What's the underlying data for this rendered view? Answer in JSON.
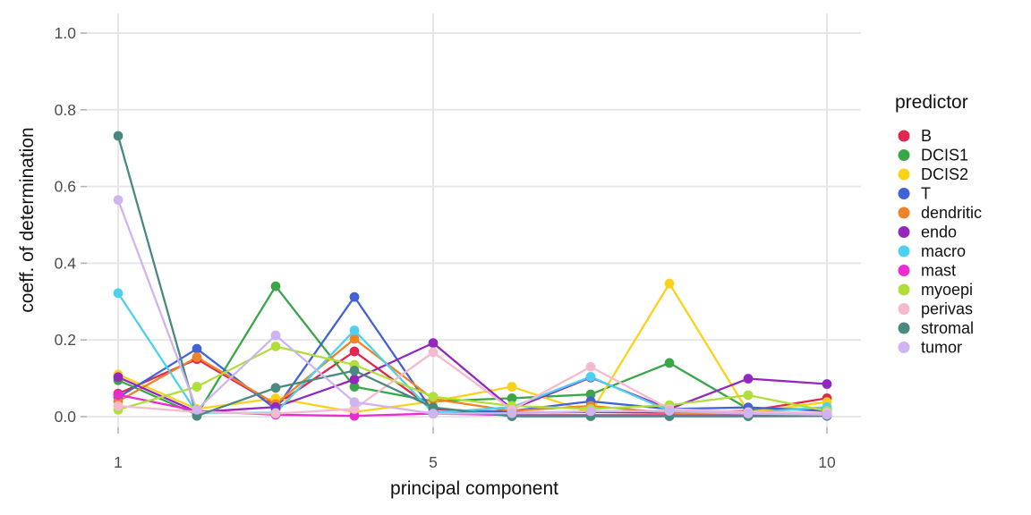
{
  "chart_data": {
    "type": "line",
    "title": "",
    "xlabel": "principal component",
    "ylabel": "coeff. of determination",
    "legend_title": "predictor",
    "legend_position": "right",
    "grid": "major",
    "x": [
      1,
      2,
      3,
      4,
      5,
      6,
      7,
      8,
      9,
      10
    ],
    "x_ticks": [
      {
        "value": 1,
        "label": "1"
      },
      {
        "value": 5,
        "label": "5"
      },
      {
        "value": 10,
        "label": "10"
      }
    ],
    "y_ticks": [
      {
        "value": 0.0,
        "label": "0.0"
      },
      {
        "value": 0.2,
        "label": "0.2"
      },
      {
        "value": 0.4,
        "label": "0.4"
      },
      {
        "value": 0.6,
        "label": "0.6"
      },
      {
        "value": 0.8,
        "label": "0.8"
      },
      {
        "value": 1.0,
        "label": "1.0"
      }
    ],
    "xlim": [
      0.6,
      10.4
    ],
    "ylim": [
      -0.03,
      1.05
    ],
    "series": [
      {
        "name": "B",
        "color": "#E0274F",
        "values": [
          0.06,
          0.15,
          0.03,
          0.17,
          0.02,
          0.01,
          0.012,
          0.01,
          0.015,
          0.048
        ]
      },
      {
        "name": "DCIS1",
        "color": "#3AA648",
        "values": [
          0.095,
          0.005,
          0.34,
          0.078,
          0.04,
          0.048,
          0.058,
          0.14,
          0.02,
          0.02
        ]
      },
      {
        "name": "DCIS2",
        "color": "#FBD21B",
        "values": [
          0.11,
          0.02,
          0.048,
          0.012,
          0.04,
          0.078,
          0.01,
          0.347,
          0.012,
          0.038
        ]
      },
      {
        "name": "T",
        "color": "#4263D8",
        "values": [
          0.05,
          0.177,
          0.02,
          0.312,
          0.012,
          0.015,
          0.04,
          0.02,
          0.024,
          0.015
        ]
      },
      {
        "name": "dendritic",
        "color": "#EF8326",
        "values": [
          0.04,
          0.155,
          0.033,
          0.203,
          0.046,
          0.015,
          0.028,
          0.01,
          0.01,
          0.01
        ]
      },
      {
        "name": "endo",
        "color": "#9327C0",
        "values": [
          0.103,
          0.012,
          0.025,
          0.097,
          0.192,
          0.02,
          0.102,
          0.02,
          0.099,
          0.085
        ]
      },
      {
        "name": "macro",
        "color": "#4ED1F0",
        "values": [
          0.322,
          0.01,
          0.01,
          0.225,
          0.01,
          0.025,
          0.104,
          0.015,
          0.01,
          0.025
        ]
      },
      {
        "name": "mast",
        "color": "#EC2BD0",
        "values": [
          0.057,
          0.015,
          0.005,
          0.002,
          0.008,
          0.004,
          0.004,
          0.004,
          0.004,
          0.005
        ]
      },
      {
        "name": "myoepi",
        "color": "#B0DF3B",
        "values": [
          0.018,
          0.078,
          0.183,
          0.135,
          0.052,
          0.028,
          0.02,
          0.03,
          0.056,
          0.015
        ]
      },
      {
        "name": "perivas",
        "color": "#F5BACF",
        "values": [
          0.028,
          0.012,
          0.008,
          0.02,
          0.168,
          0.018,
          0.13,
          0.02,
          0.012,
          0.01
        ]
      },
      {
        "name": "stromal",
        "color": "#49897F",
        "values": [
          0.732,
          0.002,
          0.075,
          0.12,
          0.024,
          0.001,
          0.001,
          0.001,
          0.001,
          0.002
        ]
      },
      {
        "name": "tumor",
        "color": "#CEB5F1",
        "values": [
          0.565,
          0.018,
          0.212,
          0.038,
          0.008,
          0.009,
          0.014,
          0.015,
          0.008,
          0.005
        ]
      }
    ]
  },
  "colors": {
    "background": "#FFFFFF",
    "gridline": "#E7E7E7",
    "tick_mark": "#B3B3B3",
    "axis_text": "#4D4D4D",
    "axis_title": "#111111",
    "legend_text": "#111111"
  }
}
